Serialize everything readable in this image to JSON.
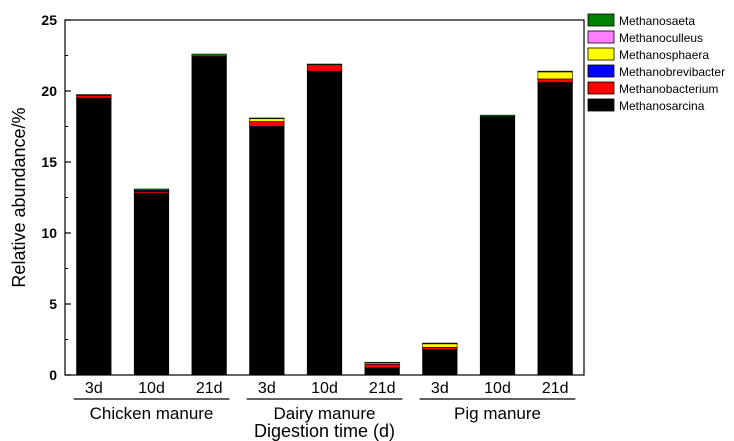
{
  "chart_data": {
    "type": "bar",
    "stacked": true,
    "categories": [
      "3d",
      "10d",
      "21d",
      "3d",
      "10d",
      "21d",
      "3d",
      "10d",
      "21d"
    ],
    "groups": [
      {
        "label": "Chicken manure",
        "start": 0,
        "end": 2
      },
      {
        "label": "Dairy manure",
        "start": 3,
        "end": 5
      },
      {
        "label": "Pig manure",
        "start": 6,
        "end": 8
      }
    ],
    "xlabel": "Digestion time (d)",
    "ylabel": "Relative abundance/%",
    "ylim": [
      0,
      25
    ],
    "yticks": [
      0,
      5,
      10,
      15,
      20,
      25
    ],
    "grid": false,
    "legend_position": "top-right",
    "series": [
      {
        "name": "Methanosarcina",
        "color": "#000000",
        "values": [
          19.5,
          12.8,
          22.4,
          17.5,
          21.4,
          0.5,
          1.8,
          18.2,
          20.6
        ]
      },
      {
        "name": "Methanobacterium",
        "color": "#ff0000",
        "values": [
          0.2,
          0.1,
          0.05,
          0.35,
          0.45,
          0.25,
          0.15,
          0.0,
          0.25
        ]
      },
      {
        "name": "Methanobrevibacter",
        "color": "#0000ff",
        "values": [
          0.0,
          0.1,
          0.0,
          0.0,
          0.0,
          0.0,
          0.0,
          0.0,
          0.0
        ]
      },
      {
        "name": "Methanosphaera",
        "color": "#ffff00",
        "values": [
          0.0,
          0.0,
          0.0,
          0.2,
          0.0,
          0.1,
          0.25,
          0.0,
          0.5
        ]
      },
      {
        "name": "Methanoculleus",
        "color": "#ff80ff",
        "values": [
          0.0,
          0.0,
          0.0,
          0.0,
          0.0,
          0.0,
          0.0,
          0.0,
          0.0
        ]
      },
      {
        "name": "Methanosaeta",
        "color": "#008000",
        "values": [
          0.05,
          0.1,
          0.15,
          0.05,
          0.05,
          0.05,
          0.05,
          0.1,
          0.05
        ]
      }
    ],
    "legend_order": [
      "Methanosaeta",
      "Methanoculleus",
      "Methanosphaera",
      "Methanobrevibacter",
      "Methanobacterium",
      "Methanosarcina"
    ]
  }
}
